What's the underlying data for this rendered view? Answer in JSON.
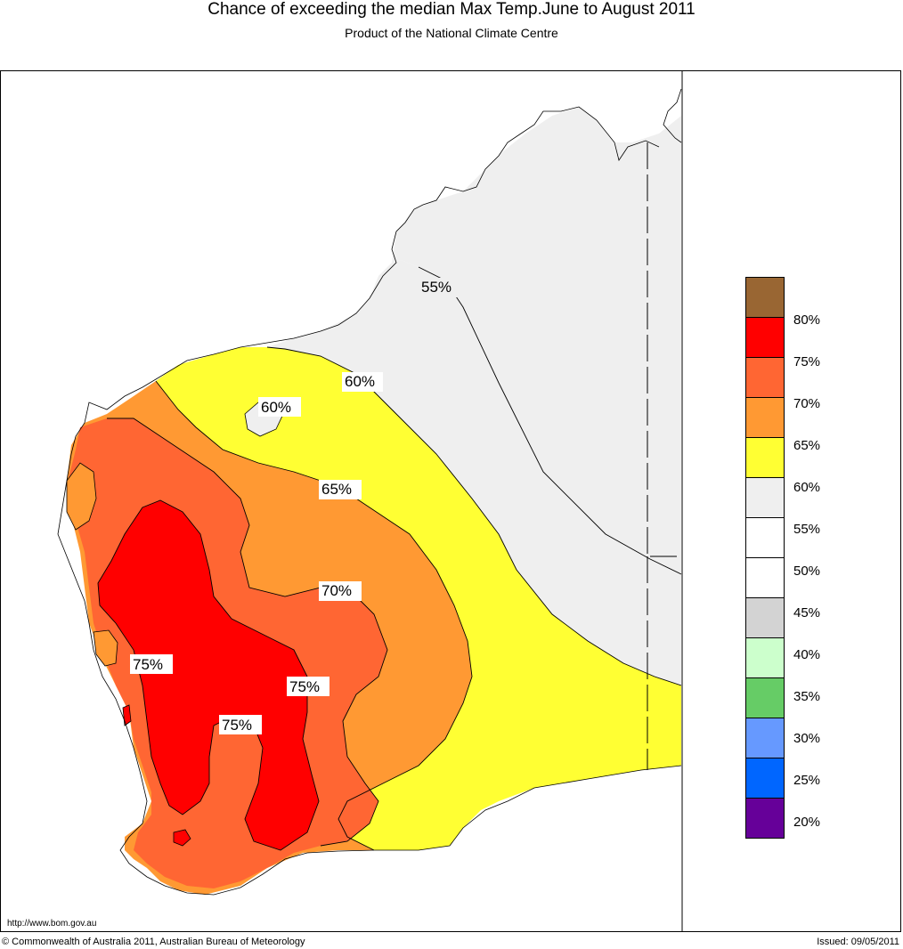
{
  "header": {
    "title": "Chance of exceeding the median Max Temp.June to August 2011",
    "subtitle": "Product of the National Climate Centre"
  },
  "map": {
    "contour_labels": [
      "55%",
      "60%",
      "60%",
      "65%",
      "70%",
      "75%",
      "75%",
      "75%"
    ],
    "colors": {
      "c55": "#efefef",
      "c60": "#ffff33",
      "c65": "#ff9933",
      "c70": "#ff6633",
      "c75": "#ff0000",
      "c80": "#996633"
    }
  },
  "legend": {
    "labels": [
      "80%",
      "75%",
      "70%",
      "65%",
      "60%",
      "55%",
      "50%",
      "45%",
      "40%",
      "35%",
      "30%",
      "25%",
      "20%"
    ],
    "swatches": [
      "#996633",
      "#ff0000",
      "#ff6633",
      "#ff9933",
      "#ffff33",
      "#efefef",
      "#ffffff",
      "#ffffff",
      "#d3d3d3",
      "#ccffcc",
      "#66cc66",
      "#6699ff",
      "#0066ff",
      "#660099"
    ]
  },
  "footer": {
    "url": "http://www.bom.gov.au",
    "copyright": "© Commonwealth of Australia 2011, Australian Bureau of Meteorology",
    "issued": "Issued: 09/05/2011"
  }
}
